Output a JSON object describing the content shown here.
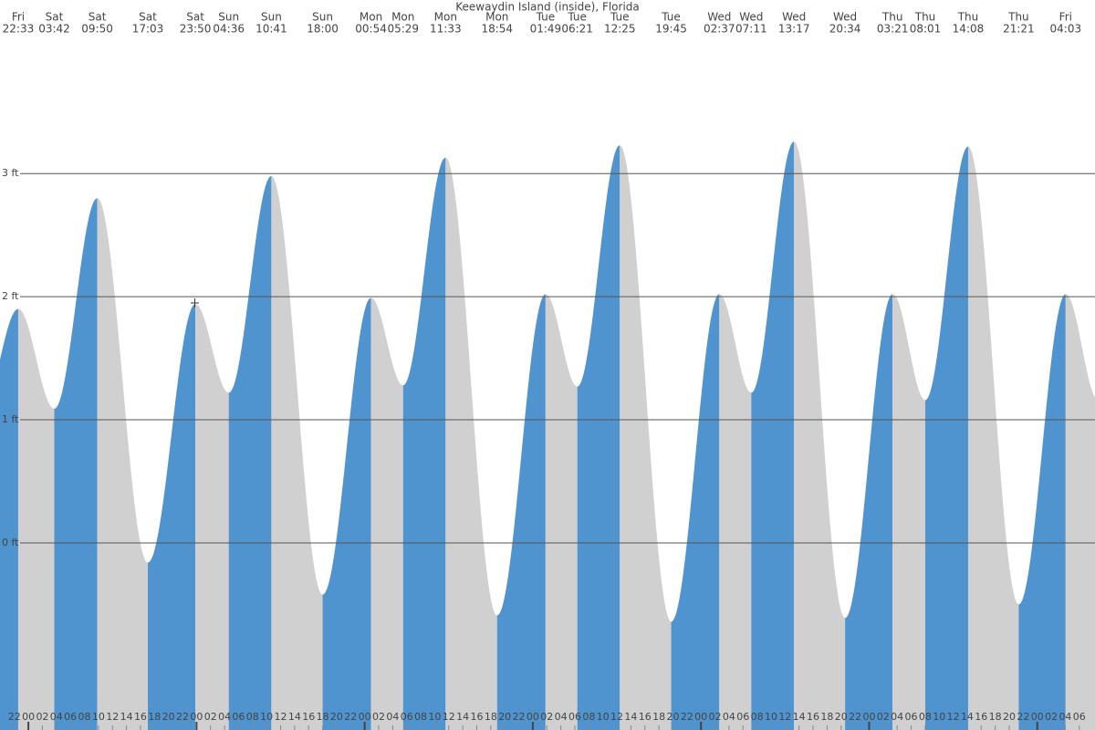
{
  "chart_data": {
    "type": "tide",
    "title": "Keewaydin Island (inside), Florida",
    "days": [
      "Fri",
      "Sat",
      "Sat",
      "Sat",
      "Sat",
      "Sun",
      "Sun",
      "Sun",
      "Mon",
      "Mon",
      "Mon",
      "Mon",
      "Tue",
      "Tue",
      "Tue",
      "Tue",
      "Wed",
      "Wed",
      "Wed",
      "Wed",
      "Thu",
      "Thu",
      "Thu",
      "Thu",
      "Fri"
    ],
    "times": [
      "22:33",
      "03:42",
      "09:50",
      "17:03",
      "23:50",
      "04:36",
      "10:41",
      "18:00",
      "00:54",
      "05:29",
      "11:33",
      "18:54",
      "01:49",
      "06:21",
      "12:25",
      "19:45",
      "02:37",
      "07:11",
      "13:17",
      "20:34",
      "03:21",
      "08:01",
      "14:08",
      "21:21",
      "04:03"
    ],
    "values": [
      1.9,
      1.09,
      2.8,
      -0.16,
      1.94,
      1.22,
      2.98,
      -0.42,
      1.99,
      1.28,
      3.13,
      -0.59,
      2.02,
      1.27,
      3.23,
      -0.64,
      2.02,
      1.22,
      3.26,
      -0.61,
      2.02,
      1.16,
      3.22,
      -0.5,
      2.02
    ],
    "colors": {
      "rising": "#4f93cf",
      "falling": "#d0d0d0",
      "grid": "#555555"
    },
    "xlim": [
      19.95,
      176.24
    ],
    "ylim": [
      -1.52,
      4.41
    ],
    "yticks": [
      {
        "value": 0,
        "label": "0 ft"
      },
      {
        "value": 1,
        "label": "1 ft"
      },
      {
        "value": 2,
        "label": "2 ft"
      },
      {
        "value": 3,
        "label": "3 ft"
      }
    ],
    "xticks": [
      {
        "value": 22,
        "label": "22"
      },
      {
        "value": 24,
        "label": "00"
      },
      {
        "value": 26,
        "label": "02"
      },
      {
        "value": 28,
        "label": "04"
      },
      {
        "value": 30,
        "label": "06"
      },
      {
        "value": 32,
        "label": "08"
      },
      {
        "value": 34,
        "label": "10"
      },
      {
        "value": 36,
        "label": "12"
      },
      {
        "value": 38,
        "label": "14"
      },
      {
        "value": 40,
        "label": "16"
      },
      {
        "value": 42,
        "label": "18"
      },
      {
        "value": 44,
        "label": "20"
      },
      {
        "value": 46,
        "label": "22"
      },
      {
        "value": 48,
        "label": "00"
      },
      {
        "value": 50,
        "label": "02"
      },
      {
        "value": 52,
        "label": "04"
      },
      {
        "value": 54,
        "label": "06"
      },
      {
        "value": 56,
        "label": "08"
      },
      {
        "value": 58,
        "label": "10"
      },
      {
        "value": 60,
        "label": "12"
      },
      {
        "value": 62,
        "label": "14"
      },
      {
        "value": 64,
        "label": "16"
      },
      {
        "value": 66,
        "label": "18"
      },
      {
        "value": 68,
        "label": "20"
      },
      {
        "value": 70,
        "label": "22"
      },
      {
        "value": 72,
        "label": "00"
      },
      {
        "value": 74,
        "label": "02"
      },
      {
        "value": 76,
        "label": "04"
      },
      {
        "value": 78,
        "label": "06"
      },
      {
        "value": 80,
        "label": "08"
      },
      {
        "value": 82,
        "label": "10"
      },
      {
        "value": 84,
        "label": "12"
      },
      {
        "value": 86,
        "label": "14"
      },
      {
        "value": 88,
        "label": "16"
      },
      {
        "value": 90,
        "label": "18"
      },
      {
        "value": 92,
        "label": "20"
      },
      {
        "value": 94,
        "label": "22"
      },
      {
        "value": 96,
        "label": "00"
      },
      {
        "value": 98,
        "label": "02"
      },
      {
        "value": 100,
        "label": "04"
      },
      {
        "value": 102,
        "label": "06"
      },
      {
        "value": 104,
        "label": "08"
      },
      {
        "value": 106,
        "label": "10"
      },
      {
        "value": 108,
        "label": "12"
      },
      {
        "value": 110,
        "label": "14"
      },
      {
        "value": 112,
        "label": "16"
      },
      {
        "value": 114,
        "label": "18"
      },
      {
        "value": 116,
        "label": "20"
      },
      {
        "value": 118,
        "label": "22"
      },
      {
        "value": 120,
        "label": "00"
      },
      {
        "value": 122,
        "label": "02"
      },
      {
        "value": 124,
        "label": "04"
      },
      {
        "value": 126,
        "label": "06"
      },
      {
        "value": 128,
        "label": "08"
      },
      {
        "value": 130,
        "label": "10"
      },
      {
        "value": 132,
        "label": "12"
      },
      {
        "value": 134,
        "label": "14"
      },
      {
        "value": 136,
        "label": "16"
      },
      {
        "value": 138,
        "label": "18"
      },
      {
        "value": 140,
        "label": "20"
      },
      {
        "value": 142,
        "label": "22"
      },
      {
        "value": 144,
        "label": "00"
      },
      {
        "value": 146,
        "label": "02"
      },
      {
        "value": 148,
        "label": "04"
      },
      {
        "value": 150,
        "label": "06"
      },
      {
        "value": 152,
        "label": "08"
      },
      {
        "value": 154,
        "label": "10"
      },
      {
        "value": 156,
        "label": "12"
      },
      {
        "value": 158,
        "label": "14"
      },
      {
        "value": 160,
        "label": "16"
      },
      {
        "value": 162,
        "label": "18"
      },
      {
        "value": 164,
        "label": "20"
      },
      {
        "value": 166,
        "label": "22"
      },
      {
        "value": 168,
        "label": "00"
      },
      {
        "value": 170,
        "label": "02"
      },
      {
        "value": 172,
        "label": "04"
      },
      {
        "value": 174,
        "label": "06"
      }
    ]
  }
}
